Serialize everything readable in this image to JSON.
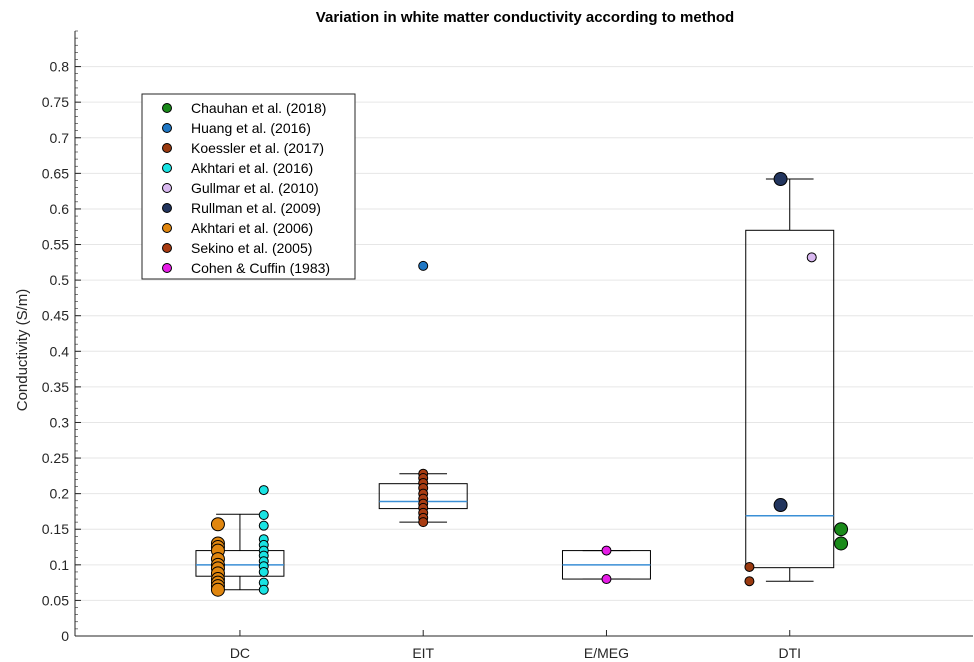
{
  "chart_data": {
    "type": "box",
    "title": "Variation in white matter conductivity according to method",
    "ylabel": "Conductivity (S/m)",
    "xlabel": "",
    "categories": [
      "DC",
      "EIT",
      "E/MEG",
      "DTI"
    ],
    "ylim": [
      0,
      0.85
    ],
    "yticks": [
      0,
      0.05,
      0.1,
      0.15,
      0.2,
      0.25,
      0.3,
      0.35,
      0.4,
      0.45,
      0.5,
      0.55,
      0.6,
      0.65,
      0.7,
      0.75,
      0.8
    ],
    "ytick_labels": [
      "0",
      "0.05",
      "0.1",
      "0.15",
      "0.2",
      "0.25",
      "0.3",
      "0.35",
      "0.4",
      "0.45",
      "0.5",
      "0.55",
      "0.6",
      "0.65",
      "0.7",
      "0.75",
      "0.8"
    ],
    "grid": "horizontal",
    "legend_position": "top-left",
    "boxes": [
      {
        "category": "DC",
        "whisker_low": 0.065,
        "q1": 0.084,
        "median": 0.1,
        "q3": 0.12,
        "whisker_high": 0.171
      },
      {
        "category": "EIT",
        "whisker_low": 0.16,
        "q1": 0.179,
        "median": 0.189,
        "q3": 0.214,
        "whisker_high": 0.228
      },
      {
        "category": "E/MEG",
        "whisker_low": 0.08,
        "q1": 0.08,
        "median": 0.1,
        "q3": 0.12,
        "whisker_high": 0.12
      },
      {
        "category": "DTI",
        "whisker_low": 0.077,
        "q1": 0.096,
        "median": 0.169,
        "q3": 0.57,
        "whisker_high": 0.642
      }
    ],
    "series": [
      {
        "name": "Chauhan et al. (2018)",
        "color": "#1a8a1a",
        "size": "large",
        "points": [
          {
            "category": "DTI",
            "offset": 0.28,
            "y": 0.15
          },
          {
            "category": "DTI",
            "offset": 0.28,
            "y": 0.13
          }
        ]
      },
      {
        "name": "Huang et al. (2016)",
        "color": "#1f77c4",
        "size": "small",
        "points": [
          {
            "category": "EIT",
            "offset": 0.0,
            "y": 0.52
          }
        ]
      },
      {
        "name": "Koessler et al. (2017)",
        "color": "#9a3a10",
        "size": "small",
        "points": [
          {
            "category": "DTI",
            "offset": -0.22,
            "y": 0.097
          },
          {
            "category": "DTI",
            "offset": -0.22,
            "y": 0.077
          }
        ]
      },
      {
        "name": "Akhtari et al. (2016)",
        "color": "#19e3e3",
        "size": "small",
        "points": [
          {
            "category": "DC",
            "offset": 0.13,
            "y": 0.205
          },
          {
            "category": "DC",
            "offset": 0.13,
            "y": 0.17
          },
          {
            "category": "DC",
            "offset": 0.13,
            "y": 0.155
          },
          {
            "category": "DC",
            "offset": 0.13,
            "y": 0.136
          },
          {
            "category": "DC",
            "offset": 0.13,
            "y": 0.128
          },
          {
            "category": "DC",
            "offset": 0.13,
            "y": 0.12
          },
          {
            "category": "DC",
            "offset": 0.13,
            "y": 0.113
          },
          {
            "category": "DC",
            "offset": 0.13,
            "y": 0.105
          },
          {
            "category": "DC",
            "offset": 0.13,
            "y": 0.098
          },
          {
            "category": "DC",
            "offset": 0.13,
            "y": 0.09
          },
          {
            "category": "DC",
            "offset": 0.13,
            "y": 0.075
          },
          {
            "category": "DC",
            "offset": 0.13,
            "y": 0.065
          }
        ]
      },
      {
        "name": "Gullmar et al. (2010)",
        "color": "#d9b8f0",
        "size": "small",
        "points": [
          {
            "category": "DTI",
            "offset": 0.12,
            "y": 0.532
          }
        ]
      },
      {
        "name": "Rullman et al. (2009)",
        "color": "#22355e",
        "size": "large",
        "points": [
          {
            "category": "DTI",
            "offset": -0.05,
            "y": 0.642
          },
          {
            "category": "DTI",
            "offset": -0.05,
            "y": 0.184
          }
        ]
      },
      {
        "name": "Akhtari et al. (2006)",
        "color": "#e0860f",
        "size": "large",
        "points": [
          {
            "category": "DC",
            "offset": -0.12,
            "y": 0.157
          },
          {
            "category": "DC",
            "offset": -0.12,
            "y": 0.13
          },
          {
            "category": "DC",
            "offset": -0.12,
            "y": 0.125
          },
          {
            "category": "DC",
            "offset": -0.12,
            "y": 0.12
          },
          {
            "category": "DC",
            "offset": -0.12,
            "y": 0.108
          },
          {
            "category": "DC",
            "offset": -0.12,
            "y": 0.1
          },
          {
            "category": "DC",
            "offset": -0.12,
            "y": 0.095
          },
          {
            "category": "DC",
            "offset": -0.12,
            "y": 0.088
          },
          {
            "category": "DC",
            "offset": -0.12,
            "y": 0.08
          },
          {
            "category": "DC",
            "offset": -0.12,
            "y": 0.075
          },
          {
            "category": "DC",
            "offset": -0.12,
            "y": 0.07
          },
          {
            "category": "DC",
            "offset": -0.12,
            "y": 0.065
          }
        ]
      },
      {
        "name": "Sekino et al. (2005)",
        "color": "#a83c12",
        "size": "small",
        "points": [
          {
            "category": "EIT",
            "offset": 0.0,
            "y": 0.228
          },
          {
            "category": "EIT",
            "offset": 0.0,
            "y": 0.222
          },
          {
            "category": "EIT",
            "offset": 0.0,
            "y": 0.215
          },
          {
            "category": "EIT",
            "offset": 0.0,
            "y": 0.208
          },
          {
            "category": "EIT",
            "offset": 0.0,
            "y": 0.2
          },
          {
            "category": "EIT",
            "offset": 0.0,
            "y": 0.193
          },
          {
            "category": "EIT",
            "offset": 0.0,
            "y": 0.186
          },
          {
            "category": "EIT",
            "offset": 0.0,
            "y": 0.18
          },
          {
            "category": "EIT",
            "offset": 0.0,
            "y": 0.173
          },
          {
            "category": "EIT",
            "offset": 0.0,
            "y": 0.166
          },
          {
            "category": "EIT",
            "offset": 0.0,
            "y": 0.16
          }
        ]
      },
      {
        "name": "Cohen & Cuffin (1983)",
        "color": "#e61ce6",
        "size": "small",
        "points": [
          {
            "category": "E/MEG",
            "offset": 0.0,
            "y": 0.12
          },
          {
            "category": "E/MEG",
            "offset": 0.0,
            "y": 0.08
          }
        ]
      }
    ],
    "colors": {
      "median": "#3a8fd6",
      "box": "#000000",
      "grid": "#e6e6e6",
      "axis": "#262626"
    }
  }
}
